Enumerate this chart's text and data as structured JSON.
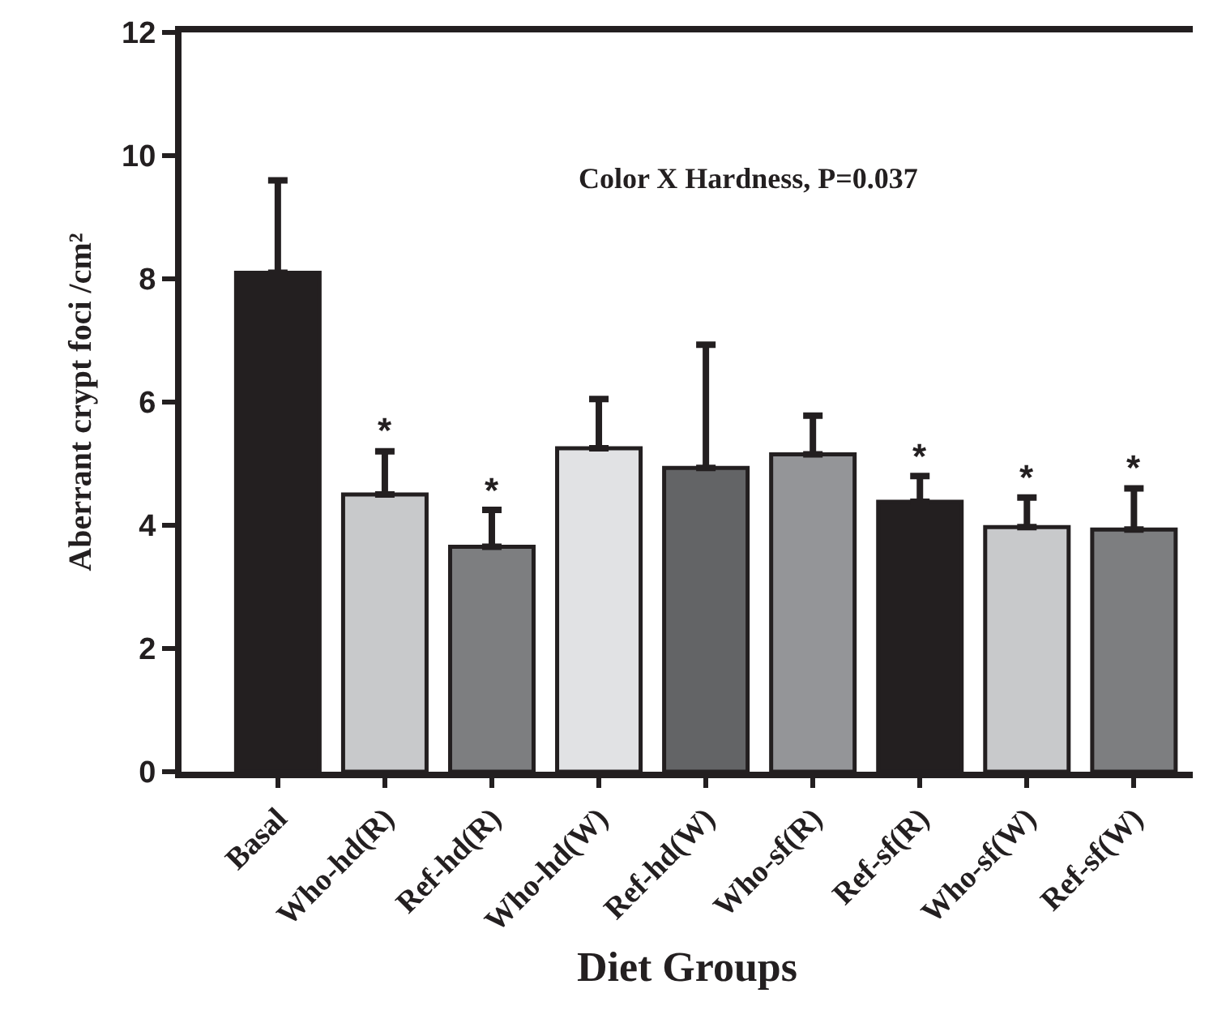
{
  "chart_data": {
    "type": "bar",
    "xlabel": "Diet Groups",
    "ylabel": "Aberrant crypt foci /cm²",
    "categories": [
      "Basal",
      "Who-hd(R)",
      "Ref-hd(R)",
      "Who-hd(W)",
      "Ref-hd(W)",
      "Who-sf(R)",
      "Ref-sf(R)",
      "Who-sf(W)",
      "Ref-sf(W)"
    ],
    "values": [
      8.1,
      4.5,
      3.65,
      5.25,
      4.93,
      5.15,
      4.38,
      3.97,
      3.93
    ],
    "errors": [
      [
        8.1,
        9.6
      ],
      [
        4.5,
        5.2
      ],
      [
        3.65,
        4.25
      ],
      [
        5.25,
        6.05
      ],
      [
        4.93,
        6.93
      ],
      [
        5.15,
        5.78
      ],
      [
        4.38,
        4.8
      ],
      [
        3.97,
        4.45
      ],
      [
        3.93,
        4.6
      ]
    ],
    "value_labels": [
      null,
      "*",
      "*",
      null,
      null,
      null,
      "*",
      "*",
      "*"
    ],
    "colors": [
      "#231f20",
      "#c8c9cb",
      "#7d7e80",
      "#e1e2e4",
      "#636466",
      "#949598",
      "#231f20",
      "#c8c9cb",
      "#7d7e80"
    ],
    "ylim": [
      0,
      12
    ],
    "yticks": [
      0,
      2,
      4,
      6,
      8,
      10,
      12
    ],
    "grid": false,
    "annotations": [
      "Color X Hardness, P=0.037"
    ]
  }
}
